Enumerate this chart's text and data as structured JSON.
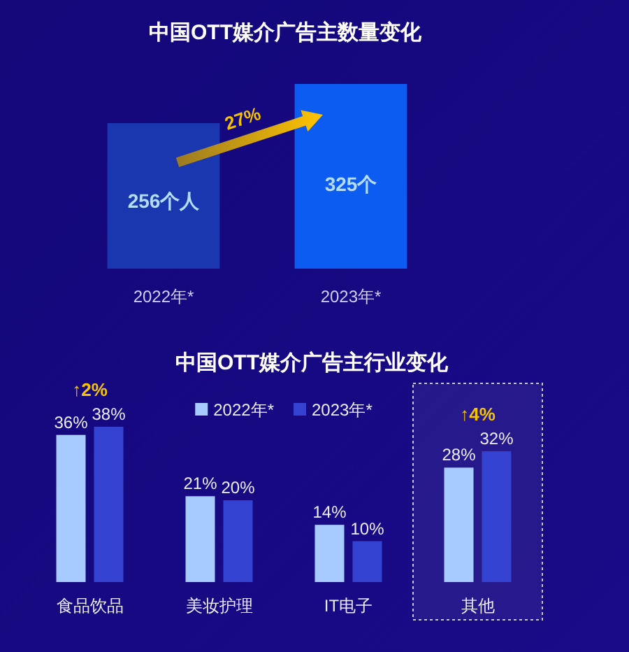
{
  "chart_data": [
    {
      "type": "bar",
      "title": "中国OTT媒介广告主数量变化",
      "categories": [
        "2022年*",
        "2023年*"
      ],
      "values": [
        256,
        325
      ],
      "value_labels": [
        "256个人",
        "325个"
      ],
      "colors": [
        "#1b37b0",
        "#0d5cf2"
      ],
      "annotations": [
        "27%"
      ]
    },
    {
      "type": "bar",
      "title": "中国OTT媒介广告主行业变化",
      "categories": [
        "食品饮品",
        "美妆护理",
        "IT电子",
        "其他"
      ],
      "series": [
        {
          "name": "2022年*",
          "color": "#a8cbff",
          "values": [
            36,
            21,
            14,
            28
          ],
          "value_labels": [
            "36%",
            "21%",
            "14%",
            "28%"
          ]
        },
        {
          "name": "2023年*",
          "color": "#3442d2",
          "values": [
            38,
            20,
            10,
            32
          ],
          "value_labels": [
            "38%",
            "20%",
            "10%",
            "32%"
          ]
        }
      ],
      "legend": "top",
      "annotations": [
        {
          "text": "↑2%",
          "x": "食品饮品",
          "y": 38
        },
        {
          "text": "↑4%",
          "x": "其他",
          "y": 32
        }
      ],
      "bands": [
        {
          "axis": "x",
          "from": "其他",
          "to": "其他",
          "color": "#c8c8e0"
        }
      ]
    }
  ]
}
